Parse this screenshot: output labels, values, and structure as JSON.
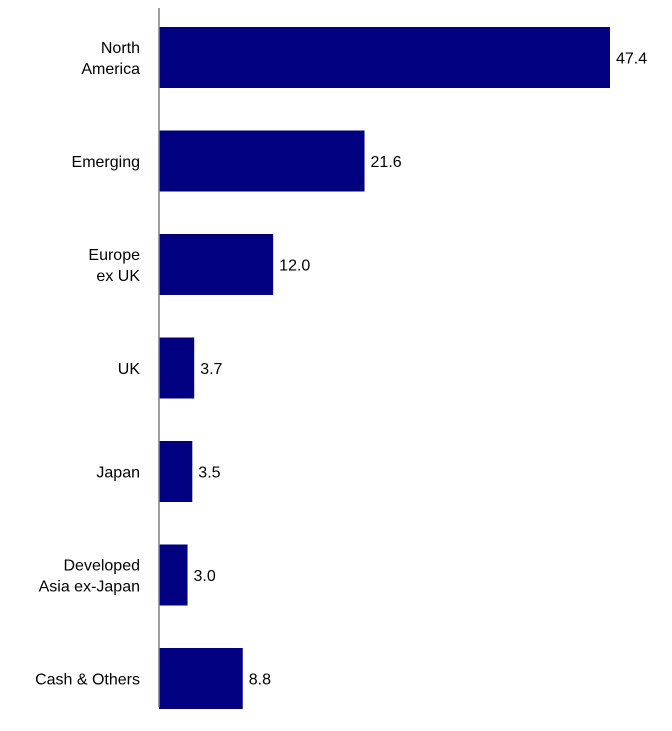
{
  "chart_data": {
    "type": "bar",
    "orientation": "horizontal",
    "categories": [
      [
        "North",
        "America"
      ],
      [
        "Emerging"
      ],
      [
        "Europe",
        "ex UK"
      ],
      [
        "UK"
      ],
      [
        "Japan"
      ],
      [
        "Developed",
        "Asia ex-Japan"
      ],
      [
        "Cash & Others"
      ]
    ],
    "values": [
      47.4,
      21.6,
      12.0,
      3.7,
      3.5,
      3.0,
      8.8
    ],
    "value_labels": [
      "47.4",
      "21.6",
      "12.0",
      "3.7",
      "3.5",
      "3.0",
      "8.8"
    ],
    "xlim": [
      0,
      47.4
    ],
    "grid": false,
    "legend": "none",
    "title": "",
    "xlabel": "",
    "ylabel": "",
    "colors": {
      "bar": "#000080",
      "axis": "#808080",
      "text": "#000000"
    }
  }
}
